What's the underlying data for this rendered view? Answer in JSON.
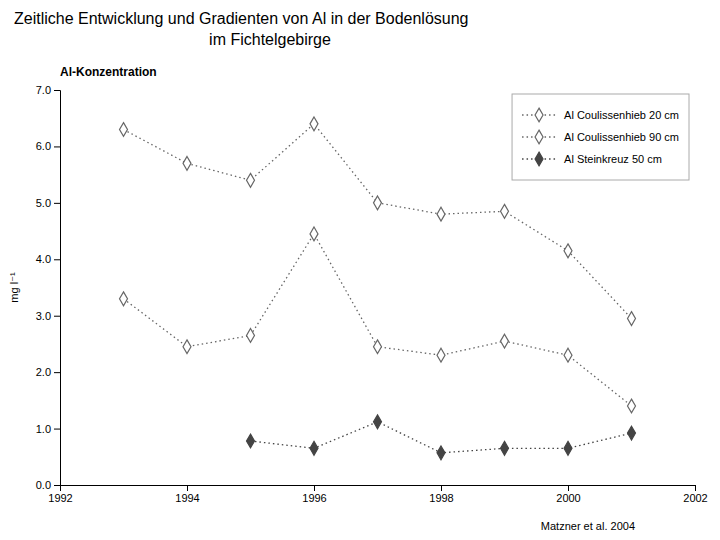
{
  "chart_data": {
    "type": "line",
    "title": [
      "Zeitliche Entwicklung und Gradienten von Al in der Bodenlösung",
      "im Fichtelgebirge"
    ],
    "subtitle": "Al-Konzentration",
    "ylabel": "mg l⁻¹",
    "annotations": [
      "Matzner et al. 2004"
    ],
    "xlim": [
      1992,
      2002
    ],
    "ylim": [
      0.0,
      7.0
    ],
    "xticks": [
      1992,
      1994,
      1996,
      1998,
      2000,
      2002
    ],
    "yticks": [
      {
        "value": 0,
        "label": "0.0"
      },
      {
        "value": 1,
        "label": "1.0"
      },
      {
        "value": 2,
        "label": "2.0"
      },
      {
        "value": 3,
        "label": "3.0"
      },
      {
        "value": 4,
        "label": "4.0"
      },
      {
        "value": 5,
        "label": "5.0"
      },
      {
        "value": 6,
        "label": "6.0"
      },
      {
        "value": 7,
        "label": "7.0"
      }
    ],
    "grid": false,
    "legend": "upper right",
    "series": [
      {
        "name": "Al Coulissenhieb 20 cm",
        "color": "#666666",
        "marker": "diamond-open",
        "line_style": "dotted",
        "x": [
          1993,
          1994,
          1995,
          1996,
          1997,
          1998,
          1999,
          2000,
          2001
        ],
        "values": [
          6.3,
          5.7,
          5.4,
          6.4,
          5.0,
          4.8,
          4.85,
          4.15,
          2.95
        ]
      },
      {
        "name": "Al Coulissenhieb 90 cm",
        "color": "#666666",
        "marker": "diamond-open",
        "line_style": "dotted",
        "x": [
          1993,
          1994,
          1995,
          1996,
          1997,
          1998,
          1999,
          2000,
          2001
        ],
        "values": [
          3.3,
          2.45,
          2.65,
          4.45,
          2.45,
          2.3,
          2.55,
          2.3,
          1.4
        ]
      },
      {
        "name": "Al Steinkreuz 50 cm",
        "color": "#444444",
        "marker": "diamond",
        "line_style": "dotted",
        "x": [
          1995,
          1996,
          1997,
          1998,
          1999,
          2000,
          2001
        ],
        "values": [
          0.78,
          0.65,
          1.12,
          0.57,
          0.65,
          0.65,
          0.92
        ]
      }
    ]
  }
}
